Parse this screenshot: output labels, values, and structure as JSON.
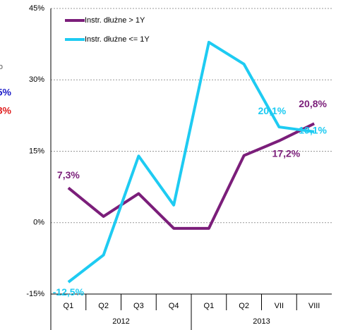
{
  "chart_data": {
    "type": "line",
    "categories": [
      "Q1",
      "Q2",
      "Q3",
      "Q4",
      "Q1",
      "Q2",
      "VII",
      "VIII"
    ],
    "groups": [
      {
        "label": "2012",
        "span": 4
      },
      {
        "label": "2013",
        "span": 4
      }
    ],
    "series": [
      {
        "name": "Instr. dłużne > 1Y",
        "color": "#7b1e7a",
        "values": [
          7.3,
          1.3,
          6.1,
          -1.2,
          -1.2,
          14.1,
          17.2,
          20.8
        ],
        "value_labels": [
          "7,3%",
          null,
          null,
          null,
          null,
          null,
          "17,2%",
          "20,8%"
        ]
      },
      {
        "name": "Instr. dłużne <= 1Y",
        "color": "#1ecbf2",
        "values": [
          -12.5,
          -6.8,
          14.0,
          3.7,
          37.9,
          33.3,
          20.1,
          19.1
        ],
        "value_labels": [
          "-12,5%",
          null,
          null,
          null,
          null,
          null,
          "20,1%",
          "19,1%"
        ]
      }
    ],
    "ylim": [
      -15,
      45
    ],
    "yticks": [
      {
        "value": -15,
        "label": "-15%"
      },
      {
        "value": 0,
        "label": "0%"
      },
      {
        "value": 15,
        "label": "15%"
      },
      {
        "value": 30,
        "label": "30%"
      },
      {
        "value": 45,
        "label": "45%"
      }
    ],
    "grid": true,
    "legend": "top-left",
    "annotations": [
      {
        "text": "o",
        "color": "#555555"
      },
      {
        "text": "5%",
        "color": "#2020c8"
      },
      {
        "text": "8%",
        "color": "#e02020"
      }
    ]
  }
}
